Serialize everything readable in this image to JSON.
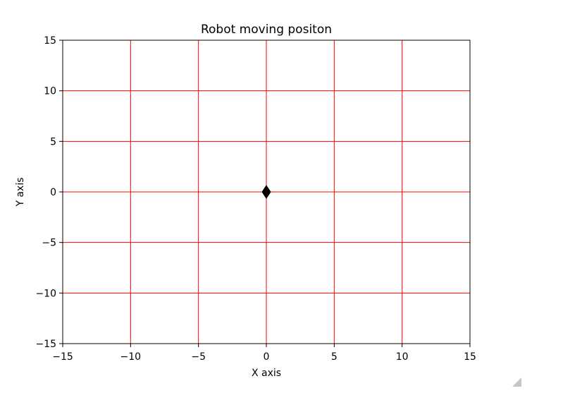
{
  "chart_data": {
    "type": "scatter",
    "title": "Robot moving positon",
    "xlabel": "X axis",
    "ylabel": "Y axis",
    "xlim": [
      -15,
      15
    ],
    "ylim": [
      -15,
      15
    ],
    "xticks": [
      -15,
      -10,
      -5,
      0,
      5,
      10,
      15
    ],
    "yticks": [
      -15,
      -10,
      -5,
      0,
      5,
      10,
      15
    ],
    "xtick_labels": [
      "−15",
      "−10",
      "−5",
      "0",
      "5",
      "10",
      "15"
    ],
    "ytick_labels": [
      "−15",
      "−10",
      "−5",
      "0",
      "5",
      "10",
      "15"
    ],
    "grid": true,
    "grid_color": "#ff0000",
    "points": [
      {
        "x": 0,
        "y": 0,
        "marker": "diamond",
        "color": "#000000"
      }
    ]
  },
  "window": {
    "resize_grip": "resize-grip-icon"
  }
}
